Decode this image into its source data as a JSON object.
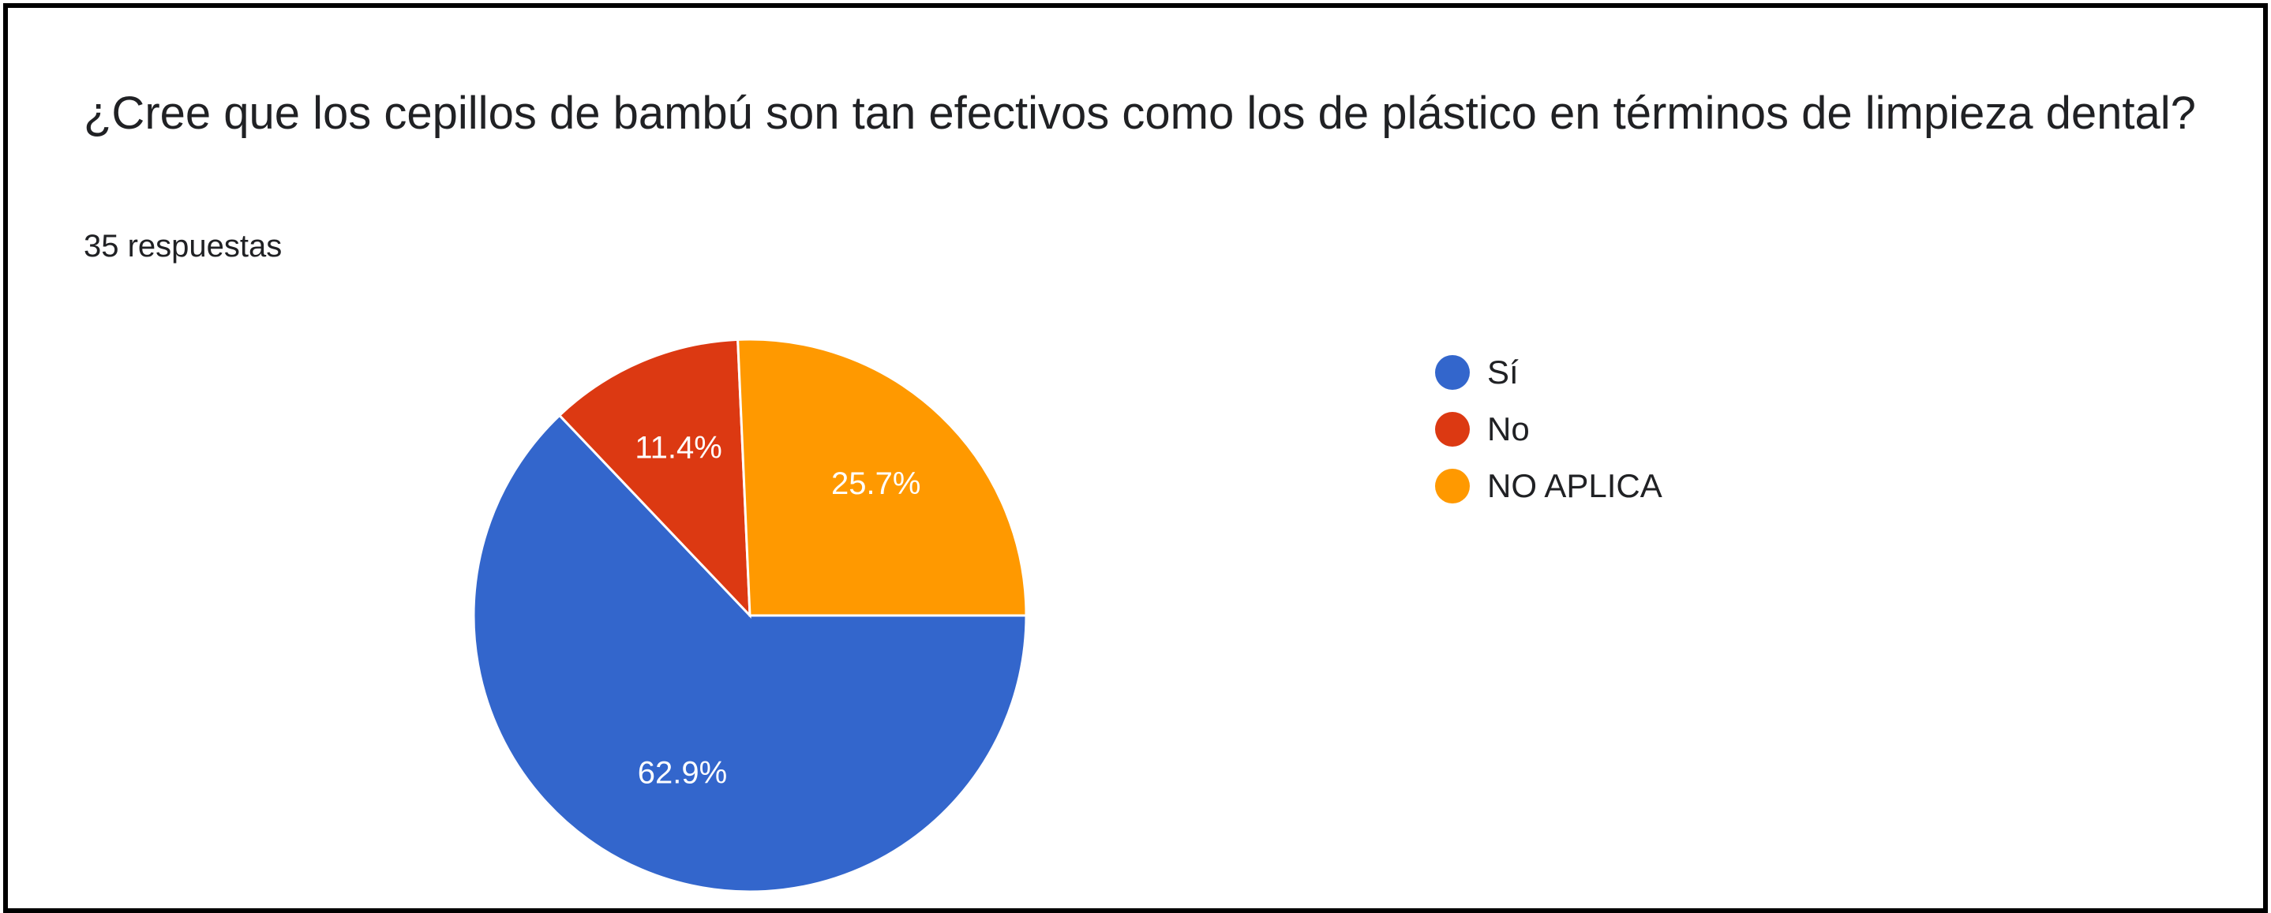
{
  "chart_data": {
    "type": "pie",
    "title": "¿Cree que los cepillos de bambú son tan efectivos como los de plástico en términos de limpieza dental?",
    "subtitle": "35 respuestas",
    "categories": [
      "Sí",
      "No",
      "NO APLICA"
    ],
    "values": [
      62.9,
      11.4,
      25.7
    ],
    "value_labels": [
      "62.9%",
      "11.4%",
      "25.7%"
    ],
    "colors": [
      "#3366CC",
      "#DC3912",
      "#FF9900"
    ],
    "legend": "right"
  }
}
